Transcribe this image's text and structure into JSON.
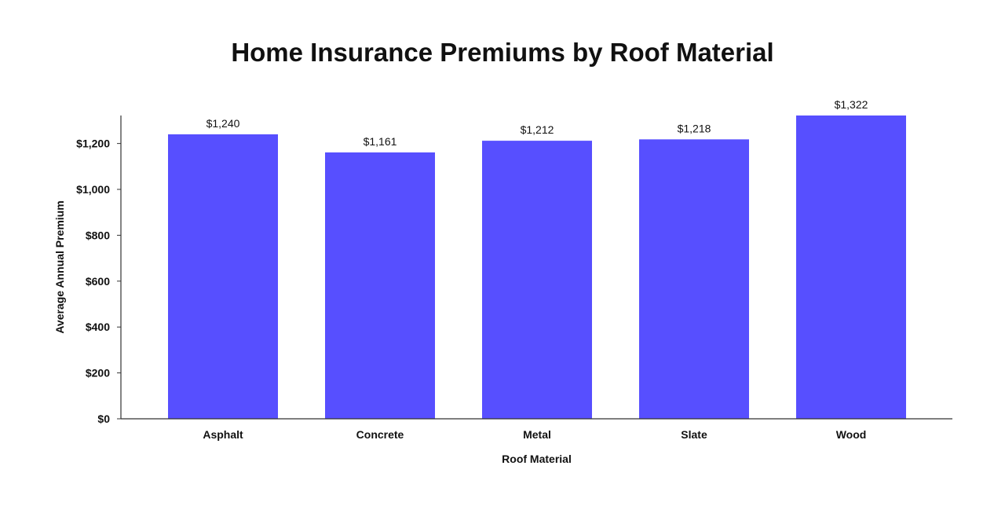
{
  "chart_data": {
    "type": "bar",
    "title": "Home Insurance Premiums by Roof Material",
    "xlabel": "Roof Material",
    "ylabel": "Average Annual Premium",
    "categories": [
      "Asphalt",
      "Concrete",
      "Metal",
      "Slate",
      "Wood"
    ],
    "values": [
      1240,
      1161,
      1212,
      1218,
      1322
    ],
    "data_labels": [
      "$1,240",
      "$1,161",
      "$1,212",
      "$1,218",
      "$1,322"
    ],
    "y_ticks": [
      0,
      200,
      400,
      600,
      800,
      1000,
      1200
    ],
    "y_tick_labels": [
      "$0",
      "$200",
      "$400",
      "$600",
      "$800",
      "$1,000",
      "$1,200"
    ],
    "ylim": [
      0,
      1322
    ],
    "grid": false,
    "legend": "none",
    "bar_color": "#574fff",
    "axis_color": "#333333"
  }
}
